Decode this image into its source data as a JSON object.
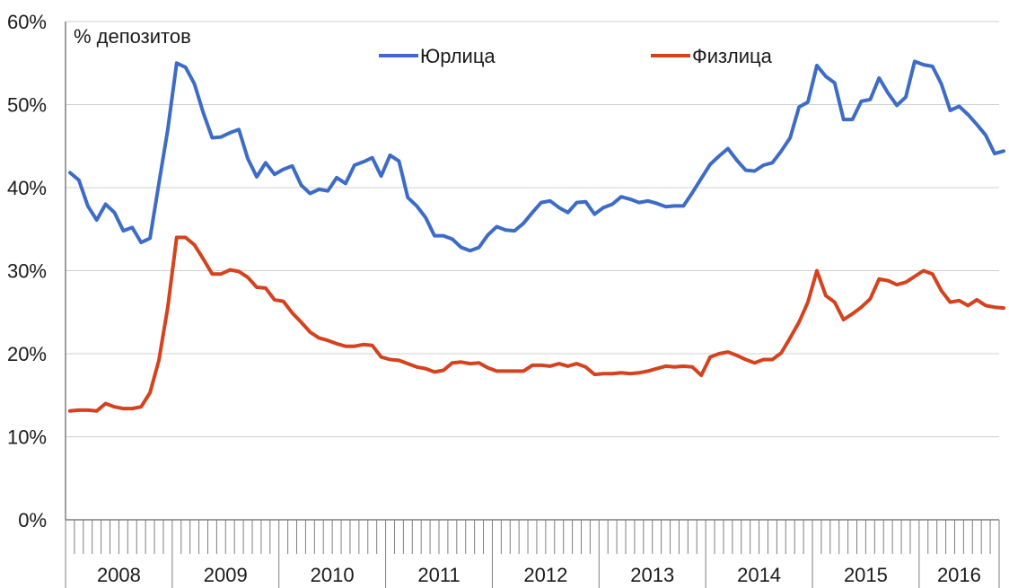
{
  "chart_data": {
    "type": "line",
    "unit_label": "% депозитов",
    "y_ticks": [
      "0%",
      "10%",
      "20%",
      "30%",
      "40%",
      "50%",
      "60%"
    ],
    "ylim": [
      0,
      60
    ],
    "grid": true,
    "legend_placement": "top-center",
    "years": [
      "2008",
      "2009",
      "2010",
      "2011",
      "2012",
      "2013",
      "2014",
      "2015",
      "2016"
    ],
    "x_start": "2008-01",
    "x_end": "2016-09",
    "series": [
      {
        "name": "Юрлица",
        "color": "#3d6cc6",
        "points": [
          [
            "2008-01",
            41.8
          ],
          [
            "2008-02",
            40.9
          ],
          [
            "2008-03",
            37.8
          ],
          [
            "2008-04",
            36.1
          ],
          [
            "2008-05",
            38.0
          ],
          [
            "2008-06",
            37.0
          ],
          [
            "2008-07",
            34.8
          ],
          [
            "2008-08",
            35.2
          ],
          [
            "2008-09",
            33.4
          ],
          [
            "2008-10",
            33.9
          ],
          [
            "2008-11",
            40.5
          ],
          [
            "2008-12",
            47.0
          ],
          [
            "2009-01",
            55.0
          ],
          [
            "2009-02",
            54.5
          ],
          [
            "2009-03",
            52.5
          ],
          [
            "2009-04",
            49.0
          ],
          [
            "2009-05",
            46.0
          ],
          [
            "2009-06",
            46.1
          ],
          [
            "2009-07",
            46.6
          ],
          [
            "2009-08",
            47.0
          ],
          [
            "2009-09",
            43.5
          ],
          [
            "2009-10",
            41.3
          ],
          [
            "2009-11",
            43.0
          ],
          [
            "2009-12",
            41.6
          ],
          [
            "2010-01",
            42.2
          ],
          [
            "2010-02",
            42.6
          ],
          [
            "2010-03",
            40.3
          ],
          [
            "2010-04",
            39.3
          ],
          [
            "2010-05",
            39.8
          ],
          [
            "2010-06",
            39.6
          ],
          [
            "2010-07",
            41.2
          ],
          [
            "2010-08",
            40.5
          ],
          [
            "2010-09",
            42.7
          ],
          [
            "2010-10",
            43.1
          ],
          [
            "2010-11",
            43.6
          ],
          [
            "2010-12",
            41.4
          ],
          [
            "2011-01",
            43.9
          ],
          [
            "2011-02",
            43.2
          ],
          [
            "2011-03",
            38.8
          ],
          [
            "2011-04",
            37.8
          ],
          [
            "2011-05",
            36.4
          ],
          [
            "2011-06",
            34.2
          ],
          [
            "2011-07",
            34.2
          ],
          [
            "2011-08",
            33.8
          ],
          [
            "2011-09",
            32.8
          ],
          [
            "2011-10",
            32.4
          ],
          [
            "2011-11",
            32.8
          ],
          [
            "2011-12",
            34.3
          ],
          [
            "2012-01",
            35.3
          ],
          [
            "2012-02",
            34.9
          ],
          [
            "2012-03",
            34.8
          ],
          [
            "2012-04",
            35.7
          ],
          [
            "2012-05",
            37.0
          ],
          [
            "2012-06",
            38.2
          ],
          [
            "2012-07",
            38.4
          ],
          [
            "2012-08",
            37.6
          ],
          [
            "2012-09",
            37.0
          ],
          [
            "2012-10",
            38.2
          ],
          [
            "2012-11",
            38.3
          ],
          [
            "2012-12",
            36.8
          ],
          [
            "2013-01",
            37.6
          ],
          [
            "2013-02",
            38.0
          ],
          [
            "2013-03",
            38.9
          ],
          [
            "2013-04",
            38.6
          ],
          [
            "2013-05",
            38.2
          ],
          [
            "2013-06",
            38.4
          ],
          [
            "2013-07",
            38.1
          ],
          [
            "2013-08",
            37.7
          ],
          [
            "2013-09",
            37.8
          ],
          [
            "2013-10",
            37.8
          ],
          [
            "2013-11",
            39.4
          ],
          [
            "2013-12",
            41.1
          ],
          [
            "2014-01",
            42.8
          ],
          [
            "2014-02",
            43.8
          ],
          [
            "2014-03",
            44.7
          ],
          [
            "2014-04",
            43.3
          ],
          [
            "2014-05",
            42.1
          ],
          [
            "2014-06",
            42.0
          ],
          [
            "2014-07",
            42.7
          ],
          [
            "2014-08",
            43.0
          ],
          [
            "2014-09",
            44.4
          ],
          [
            "2014-10",
            46.0
          ],
          [
            "2014-11",
            49.7
          ],
          [
            "2014-12",
            50.3
          ],
          [
            "2015-01",
            54.7
          ],
          [
            "2015-02",
            53.4
          ],
          [
            "2015-03",
            52.6
          ],
          [
            "2015-04",
            48.2
          ],
          [
            "2015-05",
            48.2
          ],
          [
            "2015-06",
            50.4
          ],
          [
            "2015-07",
            50.6
          ],
          [
            "2015-08",
            53.2
          ],
          [
            "2015-09",
            51.4
          ],
          [
            "2015-10",
            49.9
          ],
          [
            "2015-11",
            50.9
          ],
          [
            "2015-12",
            55.2
          ],
          [
            "2016-01",
            54.8
          ],
          [
            "2016-02",
            54.6
          ],
          [
            "2016-03",
            52.5
          ],
          [
            "2016-04",
            49.3
          ],
          [
            "2016-05",
            49.8
          ],
          [
            "2016-06",
            48.8
          ],
          [
            "2016-07",
            47.6
          ],
          [
            "2016-08",
            46.3
          ],
          [
            "2016-09",
            44.1
          ],
          [
            "2016-10",
            44.4
          ]
        ]
      },
      {
        "name": "Физлица",
        "color": "#d4421e",
        "points": [
          [
            "2008-01",
            13.1
          ],
          [
            "2008-02",
            13.2
          ],
          [
            "2008-03",
            13.2
          ],
          [
            "2008-04",
            13.1
          ],
          [
            "2008-05",
            14.0
          ],
          [
            "2008-06",
            13.6
          ],
          [
            "2008-07",
            13.4
          ],
          [
            "2008-08",
            13.4
          ],
          [
            "2008-09",
            13.6
          ],
          [
            "2008-10",
            15.3
          ],
          [
            "2008-11",
            19.2
          ],
          [
            "2008-12",
            25.6
          ],
          [
            "2009-01",
            34.0
          ],
          [
            "2009-02",
            34.0
          ],
          [
            "2009-03",
            33.1
          ],
          [
            "2009-04",
            31.4
          ],
          [
            "2009-05",
            29.6
          ],
          [
            "2009-06",
            29.6
          ],
          [
            "2009-07",
            30.1
          ],
          [
            "2009-08",
            29.9
          ],
          [
            "2009-09",
            29.2
          ],
          [
            "2009-10",
            28.0
          ],
          [
            "2009-11",
            27.9
          ],
          [
            "2009-12",
            26.5
          ],
          [
            "2010-01",
            26.3
          ],
          [
            "2010-02",
            24.9
          ],
          [
            "2010-03",
            23.8
          ],
          [
            "2010-04",
            22.6
          ],
          [
            "2010-05",
            21.9
          ],
          [
            "2010-06",
            21.6
          ],
          [
            "2010-07",
            21.2
          ],
          [
            "2010-08",
            20.9
          ],
          [
            "2010-09",
            20.9
          ],
          [
            "2010-10",
            21.1
          ],
          [
            "2010-11",
            21.0
          ],
          [
            "2010-12",
            19.6
          ],
          [
            "2011-01",
            19.3
          ],
          [
            "2011-02",
            19.2
          ],
          [
            "2011-03",
            18.8
          ],
          [
            "2011-04",
            18.4
          ],
          [
            "2011-05",
            18.2
          ],
          [
            "2011-06",
            17.8
          ],
          [
            "2011-07",
            18.0
          ],
          [
            "2011-08",
            18.9
          ],
          [
            "2011-09",
            19.0
          ],
          [
            "2011-10",
            18.8
          ],
          [
            "2011-11",
            18.9
          ],
          [
            "2011-12",
            18.3
          ],
          [
            "2012-01",
            17.9
          ],
          [
            "2012-02",
            17.9
          ],
          [
            "2012-03",
            17.9
          ],
          [
            "2012-04",
            17.9
          ],
          [
            "2012-05",
            18.6
          ],
          [
            "2012-06",
            18.6
          ],
          [
            "2012-07",
            18.5
          ],
          [
            "2012-08",
            18.8
          ],
          [
            "2012-09",
            18.5
          ],
          [
            "2012-10",
            18.8
          ],
          [
            "2012-11",
            18.4
          ],
          [
            "2012-12",
            17.5
          ],
          [
            "2013-01",
            17.6
          ],
          [
            "2013-02",
            17.6
          ],
          [
            "2013-03",
            17.7
          ],
          [
            "2013-04",
            17.6
          ],
          [
            "2013-05",
            17.7
          ],
          [
            "2013-06",
            17.9
          ],
          [
            "2013-07",
            18.2
          ],
          [
            "2013-08",
            18.5
          ],
          [
            "2013-09",
            18.4
          ],
          [
            "2013-10",
            18.5
          ],
          [
            "2013-11",
            18.4
          ],
          [
            "2013-12",
            17.4
          ],
          [
            "2014-01",
            19.6
          ],
          [
            "2014-02",
            20.0
          ],
          [
            "2014-03",
            20.2
          ],
          [
            "2014-04",
            19.8
          ],
          [
            "2014-05",
            19.3
          ],
          [
            "2014-06",
            18.9
          ],
          [
            "2014-07",
            19.3
          ],
          [
            "2014-08",
            19.3
          ],
          [
            "2014-09",
            20.1
          ],
          [
            "2014-10",
            21.9
          ],
          [
            "2014-11",
            23.8
          ],
          [
            "2014-12",
            26.2
          ],
          [
            "2015-01",
            30.0
          ],
          [
            "2015-02",
            27.0
          ],
          [
            "2015-03",
            26.2
          ],
          [
            "2015-04",
            24.1
          ],
          [
            "2015-05",
            24.8
          ],
          [
            "2015-06",
            25.6
          ],
          [
            "2015-07",
            26.6
          ],
          [
            "2015-08",
            29.0
          ],
          [
            "2015-09",
            28.8
          ],
          [
            "2015-10",
            28.3
          ],
          [
            "2015-11",
            28.6
          ],
          [
            "2015-12",
            29.3
          ],
          [
            "2016-01",
            30.0
          ],
          [
            "2016-02",
            29.6
          ],
          [
            "2016-03",
            27.6
          ],
          [
            "2016-04",
            26.2
          ],
          [
            "2016-05",
            26.4
          ],
          [
            "2016-06",
            25.8
          ],
          [
            "2016-07",
            26.5
          ],
          [
            "2016-08",
            25.8
          ],
          [
            "2016-09",
            25.6
          ],
          [
            "2016-10",
            25.5
          ]
        ]
      }
    ]
  }
}
